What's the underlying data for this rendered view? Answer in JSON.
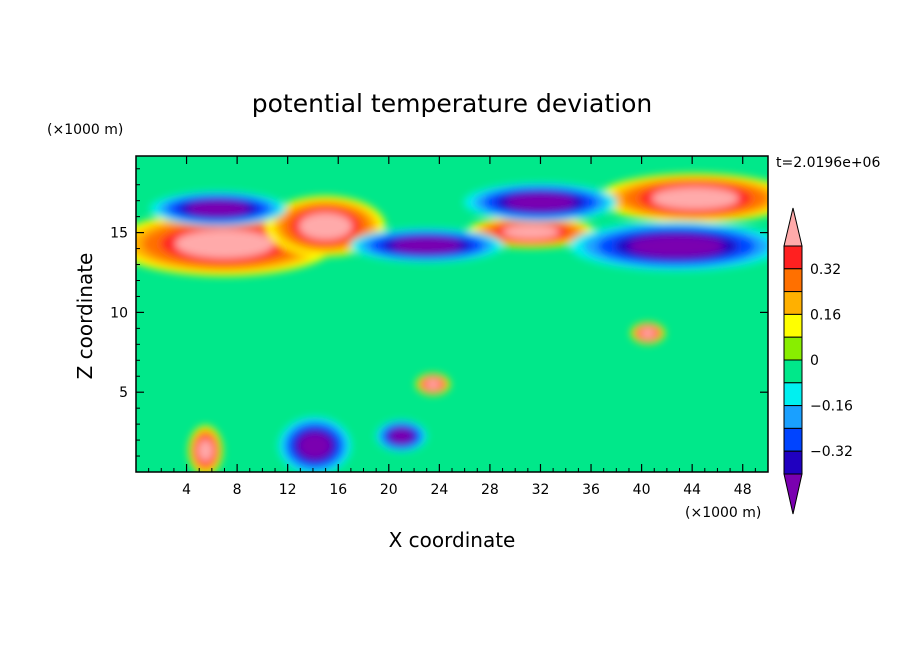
{
  "chart_data": {
    "type": "heatmap",
    "title": "potential temperature deviation",
    "xlabel": "X coordinate",
    "ylabel": "Z coordinate",
    "x_unit": "(×1000 m)",
    "y_unit": "(×1000 m)",
    "time_label": "t=2.0196e+06",
    "xlim": [
      0,
      50
    ],
    "ylim": [
      0,
      19.8
    ],
    "x_ticks": [
      4,
      8,
      12,
      16,
      20,
      24,
      28,
      32,
      36,
      40,
      44,
      48
    ],
    "y_ticks": [
      5,
      10,
      15
    ],
    "colorbar": {
      "levels": [
        -0.48,
        -0.4,
        -0.32,
        -0.24,
        -0.16,
        -0.08,
        0,
        0.08,
        0.16,
        0.24,
        0.32,
        0.4,
        0.48
      ],
      "colors": [
        "#7a00b0",
        "#2000c0",
        "#0044ff",
        "#1aa0ff",
        "#00f0f0",
        "#00e88a",
        "#88ee00",
        "#ffff00",
        "#ffb000",
        "#ff7000",
        "#ff2020",
        "#ffaaaa"
      ],
      "labels": [
        {
          "value": -0.32,
          "text": "−0.32"
        },
        {
          "value": -0.16,
          "text": "−0.16"
        },
        {
          "value": 0,
          "text": "0"
        },
        {
          "value": 0.16,
          "text": "0.16"
        },
        {
          "value": 0.32,
          "text": "0.32"
        }
      ]
    },
    "features": [
      {
        "value": 0.45,
        "x": [
          0.5,
          13.5
        ],
        "z": [
          12.8,
          15.8
        ]
      },
      {
        "value": 0.45,
        "x": [
          11.5,
          18.5
        ],
        "z": [
          14.0,
          16.8
        ]
      },
      {
        "value": 0.45,
        "x": [
          27.5,
          35.0
        ],
        "z": [
          14.3,
          15.8
        ]
      },
      {
        "value": 0.45,
        "x": [
          38.5,
          50.0
        ],
        "z": [
          16.0,
          18.3
        ]
      },
      {
        "value": -0.45,
        "x": [
          2.5,
          10.5
        ],
        "z": [
          15.7,
          17.3
        ]
      },
      {
        "value": -0.45,
        "x": [
          18.5,
          27.5
        ],
        "z": [
          13.4,
          15.0
        ]
      },
      {
        "value": -0.45,
        "x": [
          27.5,
          36.5
        ],
        "z": [
          16.0,
          17.8
        ]
      },
      {
        "value": -0.45,
        "x": [
          36.5,
          49.0
        ],
        "z": [
          13.0,
          15.3
        ]
      },
      {
        "value": -0.45,
        "x": [
          12.0,
          16.3
        ],
        "z": [
          0.3,
          3.0
        ]
      },
      {
        "value": -0.45,
        "x": [
          19.5,
          22.5
        ],
        "z": [
          1.5,
          3.0
        ]
      },
      {
        "value": 0.4,
        "x": [
          4.5,
          6.5
        ],
        "z": [
          0.2,
          2.5
        ]
      },
      {
        "value": 0.4,
        "x": [
          22.5,
          24.5
        ],
        "z": [
          5.0,
          6.0
        ]
      },
      {
        "value": 0.4,
        "x": [
          39.5,
          41.5
        ],
        "z": [
          8.2,
          9.2
        ]
      }
    ]
  }
}
